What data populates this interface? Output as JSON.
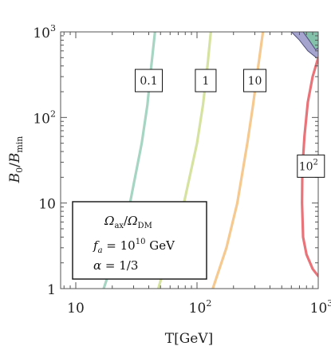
{
  "chart_data": {
    "type": "line",
    "title": "",
    "xlabel": "T[GeV]",
    "ylabel": "B_0/B_min",
    "xscale": "log",
    "yscale": "log",
    "xlim": [
      7.5,
      1000
    ],
    "ylim": [
      1,
      1000
    ],
    "x_ticks": [
      {
        "value": 10,
        "label": "10"
      },
      {
        "value": 100,
        "label": "10",
        "sup": "2"
      },
      {
        "value": 1000,
        "label": "10",
        "sup": "3"
      }
    ],
    "y_ticks": [
      {
        "value": 1,
        "label": "1"
      },
      {
        "value": 10,
        "label": "10"
      },
      {
        "value": 100,
        "label": "10",
        "sup": "2"
      },
      {
        "value": 1000,
        "label": "10",
        "sup": "3"
      }
    ],
    "grid": false,
    "series": [
      {
        "color": "#a6d5c3",
        "points": [
          [
            17,
            1
          ],
          [
            22,
            3
          ],
          [
            28,
            10
          ],
          [
            35,
            50
          ],
          [
            39,
            140
          ],
          [
            42,
            400
          ],
          [
            45,
            1000
          ]
        ]
      },
      {
        "color": "#d5e2a0",
        "points": [
          [
            48,
            1
          ],
          [
            60,
            3
          ],
          [
            78,
            10
          ],
          [
            100,
            50
          ],
          [
            112,
            140
          ],
          [
            122,
            400
          ],
          [
            130,
            1000
          ]
        ]
      },
      {
        "color": "#f5c98f",
        "points": [
          [
            135,
            1
          ],
          [
            175,
            3
          ],
          [
            215,
            10
          ],
          [
            260,
            50
          ],
          [
            290,
            140
          ],
          [
            320,
            400
          ],
          [
            350,
            1000
          ]
        ]
      },
      {
        "color": "#e8747a",
        "points": [
          [
            1000,
            1.4
          ],
          [
            900,
            1.7
          ],
          [
            800,
            2.5
          ],
          [
            750,
            4
          ],
          [
            735,
            10
          ],
          [
            740,
            25
          ],
          [
            770,
            60
          ],
          [
            820,
            150
          ],
          [
            900,
            300
          ],
          [
            1000,
            500
          ]
        ]
      }
    ],
    "regions": [
      {
        "fill": "#9b9ac9",
        "stroke": "#4d4d7a",
        "points": [
          [
            600,
            1000
          ],
          [
            700,
            800
          ],
          [
            820,
            600
          ],
          [
            1000,
            480
          ],
          [
            1000,
            1000
          ]
        ]
      },
      {
        "fill": "#7fc4a6",
        "stroke": "#4d4d7a",
        "points": [
          [
            750,
            1000
          ],
          [
            840,
            800
          ],
          [
            950,
            620
          ],
          [
            1000,
            650
          ],
          [
            1000,
            1000
          ]
        ]
      }
    ],
    "annotations": [
      {
        "text": "0.1",
        "x": 40,
        "y": 270
      },
      {
        "text": "1",
        "x": 118,
        "y": 270
      },
      {
        "text": "10",
        "x": 300,
        "y": 270
      },
      {
        "text": "10",
        "sup": "2",
        "x": 870,
        "y": 27
      }
    ],
    "legend": {
      "position": "bottom-left",
      "title": "Ω_ax/Ω_DM",
      "line1": "f_a = 10^10 GeV",
      "line2": "α = 1/3"
    }
  }
}
